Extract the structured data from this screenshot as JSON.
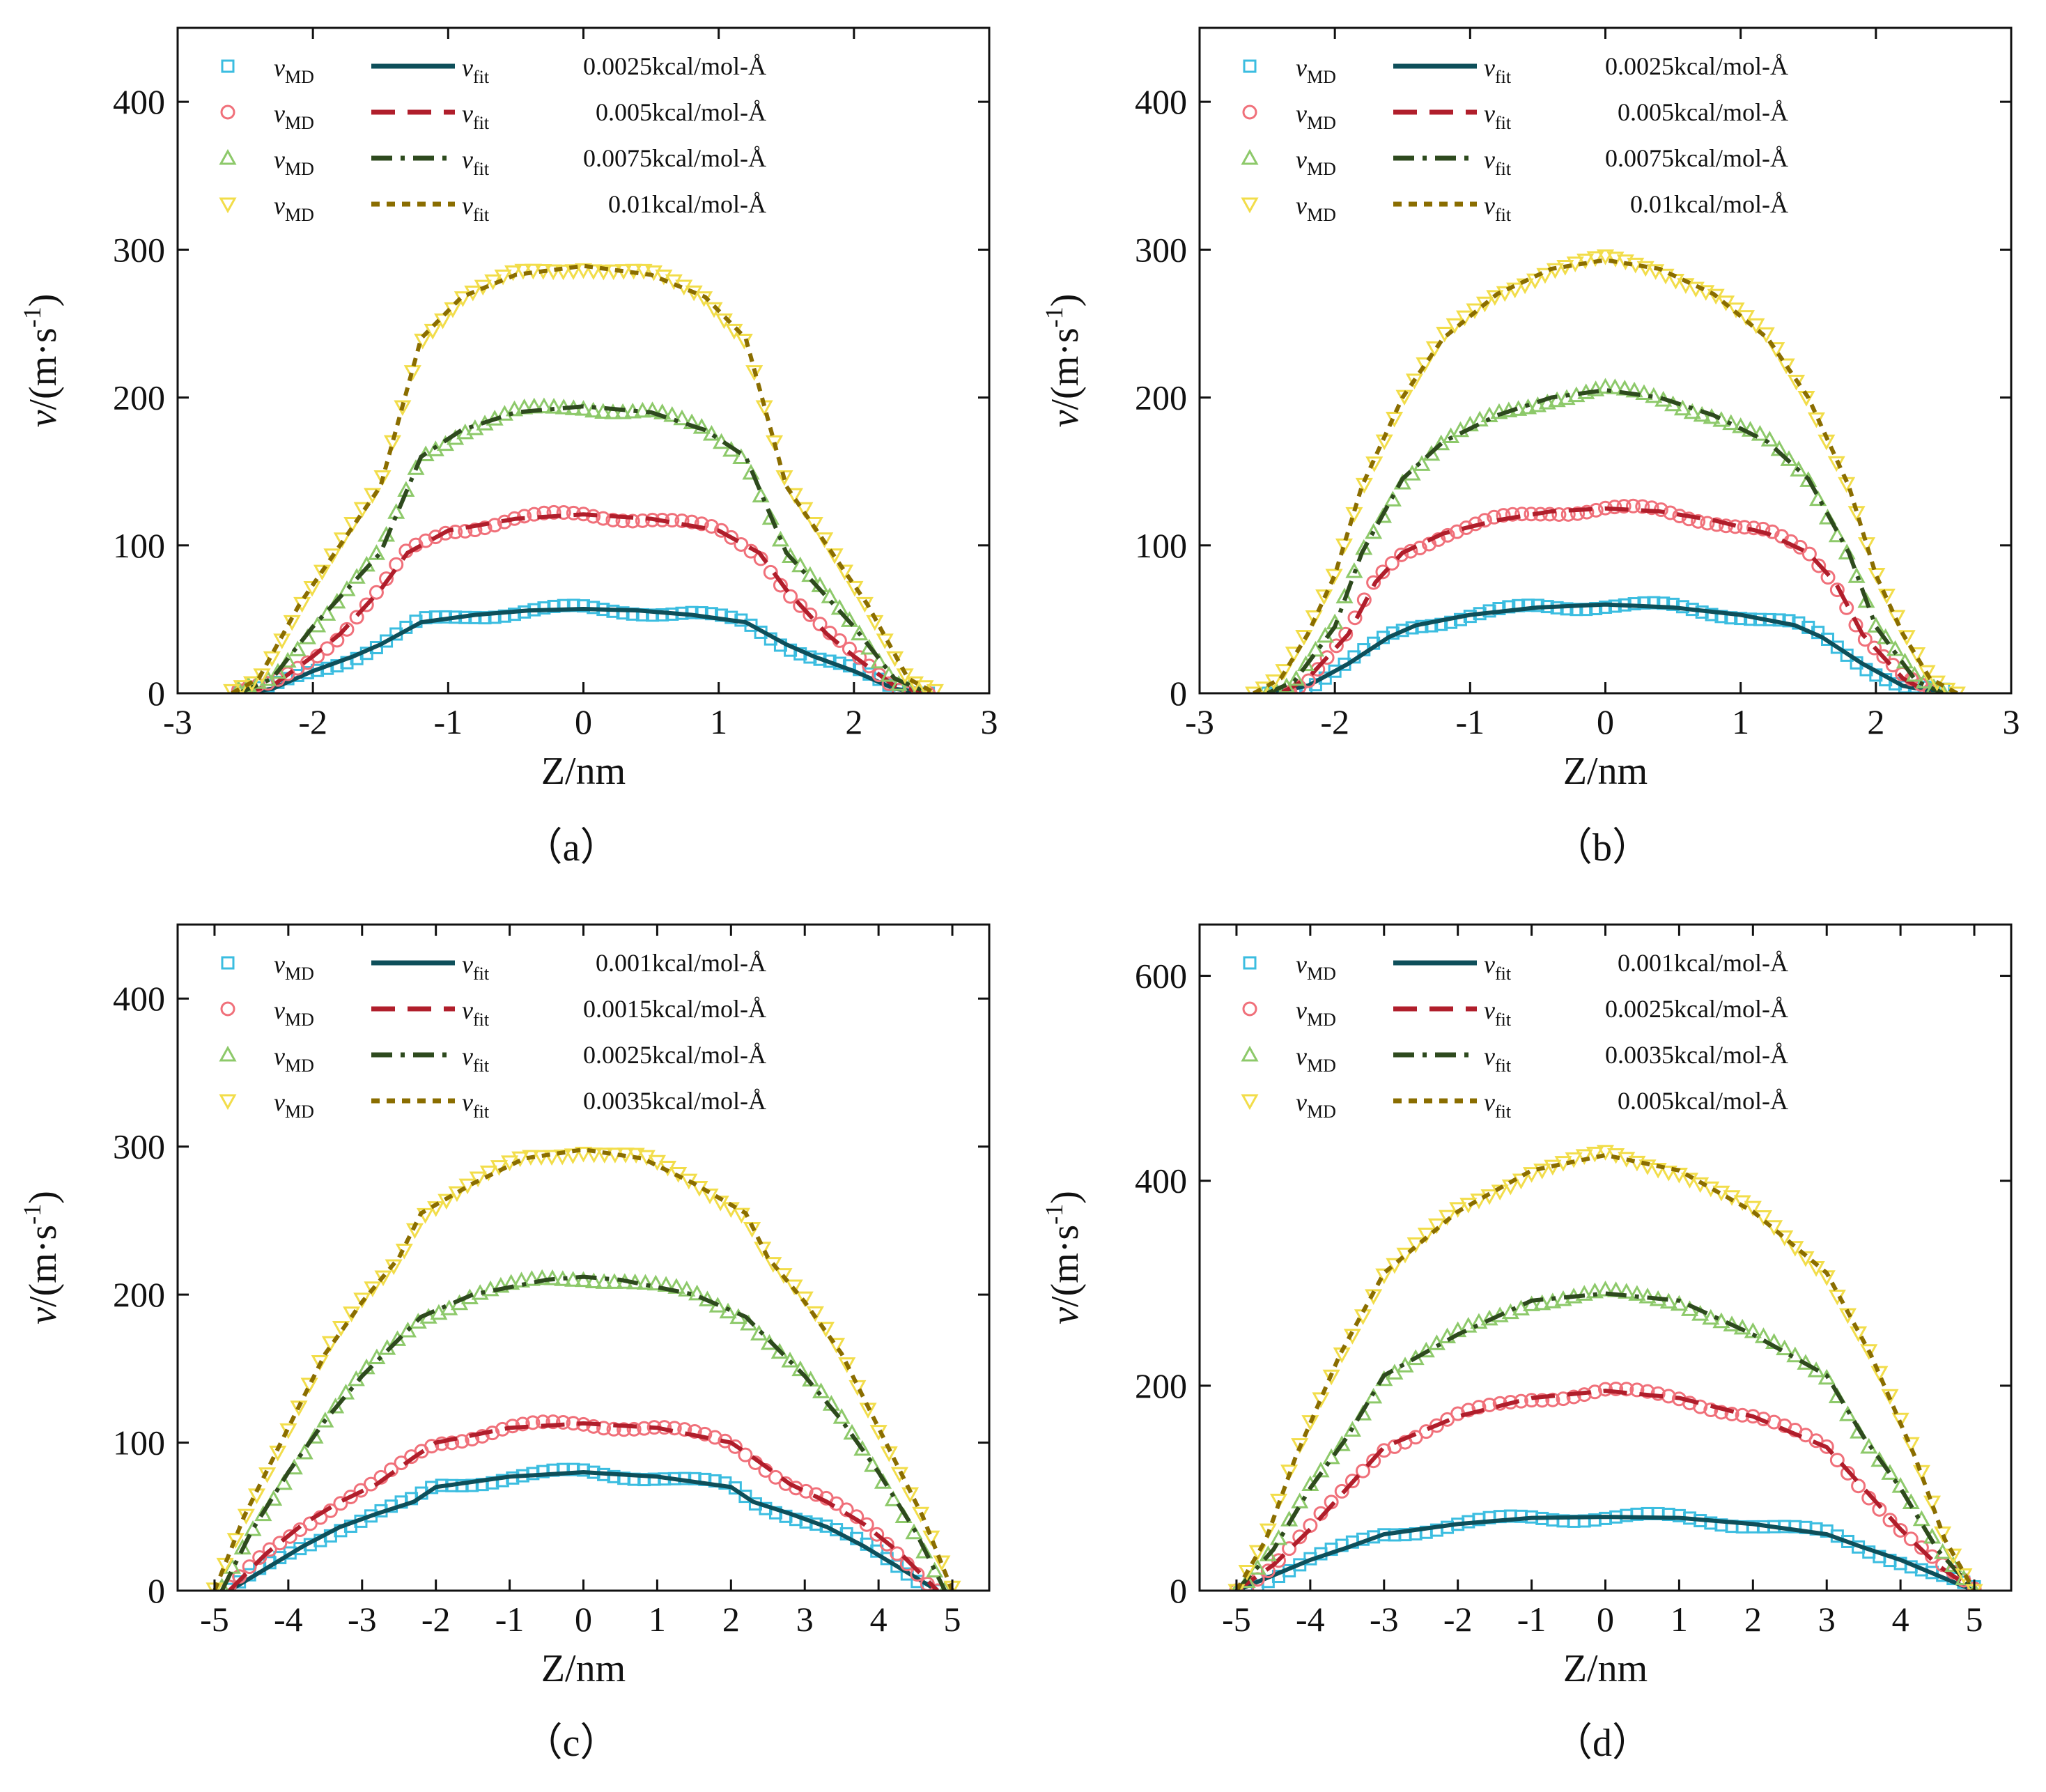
{
  "colors": {
    "marker": [
      "#3bbde0",
      "#f0707a",
      "#8dc96a",
      "#f2dd4a"
    ],
    "fit": [
      "#0e4f5a",
      "#b01e2b",
      "#2e4a1e",
      "#8a6d00"
    ]
  },
  "legend_symbols": {
    "md_var": "v",
    "md_sub": "MD",
    "fit_var": "v",
    "fit_sub": "fit"
  },
  "chart_data": [
    {
      "type": "line",
      "panel": "(a)",
      "caption": "（a）",
      "xlabel": "Z/nm",
      "ylabel": "v/(m·s-1)",
      "ylabel_var": "v",
      "ylabel_unit": "/(m·s",
      "ylabel_sup": "-1",
      "ylabel_close": ")",
      "xlim": [
        -3,
        3
      ],
      "ylim": [
        0,
        450
      ],
      "xticks": [
        -3,
        -2,
        -1,
        0,
        1,
        2,
        3
      ],
      "yticks": [
        0,
        100,
        200,
        300,
        400
      ],
      "legend": [
        "0.0025kcal/mol-Å",
        "0.005kcal/mol-Å",
        "0.0075kcal/mol-Å",
        "0.01kcal/mol-Å"
      ],
      "series": [
        {
          "md_label": "vMD",
          "fit_label": "vfit",
          "force": "0.0025kcal/mol-Å",
          "marker": "square",
          "fit_style": "solid",
          "x": [
            -2.55,
            -2.3,
            -2.0,
            -1.7,
            -1.5,
            -1.2,
            -0.8,
            -0.4,
            0.0,
            0.4,
            0.8,
            1.2,
            1.5,
            1.7,
            2.0,
            2.3,
            2.55
          ],
          "y": [
            0,
            3,
            15,
            25,
            33,
            48,
            53,
            56,
            57,
            56,
            53,
            48,
            33,
            25,
            15,
            3,
            0
          ]
        },
        {
          "md_label": "vMD",
          "fit_label": "vfit",
          "force": "0.005kcal/mol-Å",
          "marker": "circle",
          "fit_style": "dash",
          "x": [
            -2.55,
            -2.3,
            -2.0,
            -1.8,
            -1.5,
            -1.3,
            -1.0,
            -0.5,
            0.0,
            0.5,
            1.0,
            1.3,
            1.5,
            1.8,
            2.0,
            2.3,
            2.55
          ],
          "y": [
            0,
            5,
            25,
            40,
            70,
            95,
            110,
            118,
            121,
            118,
            110,
            95,
            70,
            40,
            25,
            5,
            0
          ]
        },
        {
          "md_label": "vMD",
          "fit_label": "vfit",
          "force": "0.0075kcal/mol-Å",
          "marker": "triangle-up",
          "fit_style": "dashdot",
          "x": [
            -2.55,
            -2.3,
            -2.0,
            -1.8,
            -1.5,
            -1.2,
            -0.9,
            -0.5,
            0.0,
            0.5,
            0.9,
            1.2,
            1.5,
            1.8,
            2.0,
            2.3,
            2.55
          ],
          "y": [
            0,
            10,
            45,
            65,
            95,
            160,
            178,
            190,
            194,
            190,
            178,
            160,
            95,
            65,
            45,
            10,
            0
          ]
        },
        {
          "md_label": "vMD",
          "fit_label": "vfit",
          "force": "0.01kcal/mol-Å",
          "marker": "triangle-down",
          "fit_style": "shortdash",
          "x": [
            -2.6,
            -2.4,
            -2.1,
            -1.8,
            -1.5,
            -1.2,
            -0.9,
            -0.5,
            0.0,
            0.5,
            0.9,
            1.2,
            1.5,
            1.8,
            2.1,
            2.4,
            2.6
          ],
          "y": [
            0,
            10,
            60,
            100,
            140,
            240,
            268,
            283,
            289,
            283,
            268,
            240,
            140,
            100,
            60,
            10,
            0
          ]
        }
      ]
    },
    {
      "type": "line",
      "panel": "(b)",
      "caption": "（b）",
      "xlabel": "Z/nm",
      "ylabel": "v/(m·s-1)",
      "ylabel_var": "v",
      "ylabel_unit": "/(m·s",
      "ylabel_sup": "-1",
      "ylabel_close": ")",
      "xlim": [
        -3,
        3
      ],
      "ylim": [
        0,
        450
      ],
      "xticks": [
        -3,
        -2,
        -1,
        0,
        1,
        2,
        3
      ],
      "yticks": [
        0,
        100,
        200,
        300,
        400
      ],
      "legend": [
        "0.0025kcal/mol-Å",
        "0.005kcal/mol-Å",
        "0.0075kcal/mol-Å",
        "0.01kcal/mol-Å"
      ],
      "series": [
        {
          "md_label": "vMD",
          "fit_label": "vfit",
          "force": "0.0025kcal/mol-Å",
          "marker": "square",
          "fit_style": "solid",
          "x": [
            -2.5,
            -2.2,
            -1.9,
            -1.6,
            -1.4,
            -1.0,
            -0.5,
            0.0,
            0.5,
            1.0,
            1.4,
            1.6,
            1.9,
            2.2,
            2.5
          ],
          "y": [
            0,
            5,
            20,
            38,
            46,
            53,
            58,
            60,
            58,
            53,
            46,
            38,
            20,
            5,
            0
          ]
        },
        {
          "md_label": "vMD",
          "fit_label": "vfit",
          "force": "0.005kcal/mol-Å",
          "marker": "circle",
          "fit_style": "dash",
          "x": [
            -2.4,
            -2.2,
            -1.9,
            -1.7,
            -1.5,
            -1.2,
            -0.8,
            -0.4,
            0.0,
            0.4,
            0.8,
            1.2,
            1.5,
            1.7,
            1.9,
            2.2,
            2.4
          ],
          "y": [
            0,
            10,
            40,
            75,
            95,
            108,
            117,
            123,
            125,
            123,
            117,
            108,
            95,
            75,
            40,
            10,
            0
          ]
        },
        {
          "md_label": "vMD",
          "fit_label": "vfit",
          "force": "0.0075kcal/mol-Å",
          "marker": "triangle-up",
          "fit_style": "dashdot",
          "x": [
            -2.5,
            -2.3,
            -2.0,
            -1.8,
            -1.5,
            -1.2,
            -0.8,
            -0.4,
            0.0,
            0.4,
            0.8,
            1.2,
            1.5,
            1.8,
            2.0,
            2.3,
            2.5
          ],
          "y": [
            0,
            8,
            45,
            95,
            145,
            170,
            188,
            200,
            205,
            200,
            188,
            170,
            145,
            95,
            45,
            8,
            0
          ]
        },
        {
          "md_label": "vMD",
          "fit_label": "vfit",
          "force": "0.01kcal/mol-Å",
          "marker": "triangle-down",
          "fit_style": "shortdash",
          "x": [
            -2.6,
            -2.4,
            -2.2,
            -2.0,
            -1.8,
            -1.5,
            -1.2,
            -0.8,
            -0.4,
            0.0,
            0.4,
            0.8,
            1.2,
            1.5,
            1.8,
            2.0,
            2.2,
            2.4,
            2.6
          ],
          "y": [
            0,
            10,
            40,
            80,
            140,
            200,
            240,
            270,
            287,
            293,
            287,
            270,
            240,
            200,
            140,
            80,
            40,
            10,
            0
          ]
        }
      ]
    },
    {
      "type": "line",
      "panel": "(c)",
      "caption": "（c）",
      "xlabel": "Z/nm",
      "ylabel": "v/(m·s-1)",
      "ylabel_var": "v",
      "ylabel_unit": "/(m·s",
      "ylabel_sup": "-1",
      "ylabel_close": ")",
      "xlim": [
        -5.5,
        5.5
      ],
      "ylim": [
        0,
        450
      ],
      "xticks": [
        -5,
        -4,
        -3,
        -2,
        -1,
        0,
        1,
        2,
        3,
        4,
        5
      ],
      "yticks": [
        0,
        100,
        200,
        300,
        400
      ],
      "legend": [
        "0.001kcal/mol-Å",
        "0.0015kcal/mol-Å",
        "0.0025kcal/mol-Å",
        "0.0035kcal/mol-Å"
      ],
      "series": [
        {
          "md_label": "vMD",
          "fit_label": "vfit",
          "force": "0.001kcal/mol-Å",
          "marker": "square",
          "fit_style": "solid",
          "x": [
            -4.8,
            -4.3,
            -3.8,
            -3.3,
            -2.8,
            -2.3,
            -2.0,
            -1.0,
            0.0,
            1.0,
            2.0,
            2.3,
            2.8,
            3.3,
            3.8,
            4.3,
            4.8
          ],
          "y": [
            0,
            15,
            30,
            43,
            52,
            60,
            70,
            77,
            80,
            77,
            70,
            60,
            52,
            43,
            30,
            15,
            0
          ]
        },
        {
          "md_label": "vMD",
          "fit_label": "vfit",
          "force": "0.0015kcal/mol-Å",
          "marker": "circle",
          "fit_style": "dash",
          "x": [
            -4.8,
            -4.3,
            -3.8,
            -3.3,
            -2.8,
            -2.3,
            -2.0,
            -1.0,
            0.0,
            1.0,
            2.0,
            2.3,
            2.8,
            3.3,
            3.8,
            4.3,
            4.8
          ],
          "y": [
            0,
            25,
            45,
            60,
            72,
            90,
            100,
            110,
            113,
            110,
            100,
            90,
            72,
            60,
            45,
            25,
            0
          ]
        },
        {
          "md_label": "vMD",
          "fit_label": "vfit",
          "force": "0.0025kcal/mol-Å",
          "marker": "triangle-up",
          "fit_style": "dashdot",
          "x": [
            -4.9,
            -4.5,
            -4.0,
            -3.5,
            -3.0,
            -2.5,
            -2.2,
            -1.5,
            -0.5,
            0.0,
            0.5,
            1.5,
            2.2,
            2.5,
            3.0,
            3.5,
            4.0,
            4.5,
            4.9
          ],
          "y": [
            0,
            40,
            80,
            115,
            145,
            170,
            185,
            200,
            210,
            212,
            210,
            200,
            185,
            170,
            145,
            115,
            80,
            40,
            0
          ]
        },
        {
          "md_label": "vMD",
          "fit_label": "vfit",
          "force": "0.0035kcal/mol-Å",
          "marker": "triangle-down",
          "fit_style": "shortdash",
          "x": [
            -5.0,
            -4.6,
            -4.0,
            -3.5,
            -3.0,
            -2.5,
            -2.2,
            -1.5,
            -0.8,
            0.0,
            0.8,
            1.5,
            2.2,
            2.5,
            3.0,
            3.5,
            4.0,
            4.6,
            5.0
          ],
          "y": [
            0,
            50,
            110,
            160,
            195,
            225,
            255,
            275,
            292,
            298,
            292,
            275,
            255,
            225,
            195,
            160,
            110,
            50,
            0
          ]
        }
      ]
    },
    {
      "type": "line",
      "panel": "(d)",
      "caption": "（d）",
      "xlabel": "Z/nm",
      "ylabel": "v/(m·s-1)",
      "ylabel_var": "v",
      "ylabel_unit": "/(m·s",
      "ylabel_sup": "-1",
      "ylabel_close": ")",
      "xlim": [
        -5.5,
        5.5
      ],
      "ylim": [
        0,
        650
      ],
      "xticks": [
        -5,
        -4,
        -3,
        -2,
        -1,
        0,
        1,
        2,
        3,
        4,
        5
      ],
      "yticks": [
        0,
        200,
        400,
        600
      ],
      "legend": [
        "0.001kcal/mol-Å",
        "0.0025kcal/mol-Å",
        "0.0035kcal/mol-Å",
        "0.005kcal/mol-Å"
      ],
      "series": [
        {
          "md_label": "vMD",
          "fit_label": "vfit",
          "force": "0.001kcal/mol-Å",
          "marker": "square",
          "fit_style": "solid",
          "x": [
            -5.0,
            -4.5,
            -4.0,
            -3.5,
            -3.0,
            -2.0,
            -1.0,
            0.0,
            1.0,
            2.0,
            3.0,
            3.5,
            4.0,
            4.5,
            5.0
          ],
          "y": [
            0,
            15,
            30,
            42,
            55,
            65,
            71,
            72,
            71,
            65,
            55,
            42,
            30,
            15,
            0
          ]
        },
        {
          "md_label": "vMD",
          "fit_label": "vfit",
          "force": "0.0025kcal/mol-Å",
          "marker": "circle",
          "fit_style": "dash",
          "x": [
            -5.0,
            -4.5,
            -4.0,
            -3.5,
            -3.0,
            -2.0,
            -1.0,
            0.0,
            1.0,
            2.0,
            3.0,
            3.5,
            4.0,
            4.5,
            5.0
          ],
          "y": [
            0,
            25,
            60,
            100,
            140,
            170,
            188,
            195,
            188,
            170,
            140,
            100,
            60,
            25,
            0
          ]
        },
        {
          "md_label": "vMD",
          "fit_label": "vfit",
          "force": "0.0035kcal/mol-Å",
          "marker": "triangle-up",
          "fit_style": "dashdot",
          "x": [
            -5.0,
            -4.5,
            -4.0,
            -3.5,
            -3.0,
            -2.0,
            -1.0,
            0.0,
            1.0,
            2.0,
            3.0,
            3.5,
            4.0,
            4.5,
            5.0
          ],
          "y": [
            0,
            40,
            100,
            150,
            210,
            250,
            283,
            290,
            283,
            250,
            210,
            150,
            100,
            40,
            0
          ]
        },
        {
          "md_label": "vMD",
          "fit_label": "vfit",
          "force": "0.005kcal/mol-Å",
          "marker": "triangle-down",
          "fit_style": "shortdash",
          "x": [
            -5.0,
            -4.6,
            -4.2,
            -3.6,
            -3.0,
            -2.0,
            -1.0,
            0.0,
            1.0,
            2.0,
            3.0,
            3.6,
            4.2,
            4.6,
            5.0
          ],
          "y": [
            0,
            50,
            130,
            230,
            310,
            370,
            410,
            425,
            410,
            370,
            310,
            230,
            130,
            50,
            0
          ]
        }
      ]
    }
  ]
}
